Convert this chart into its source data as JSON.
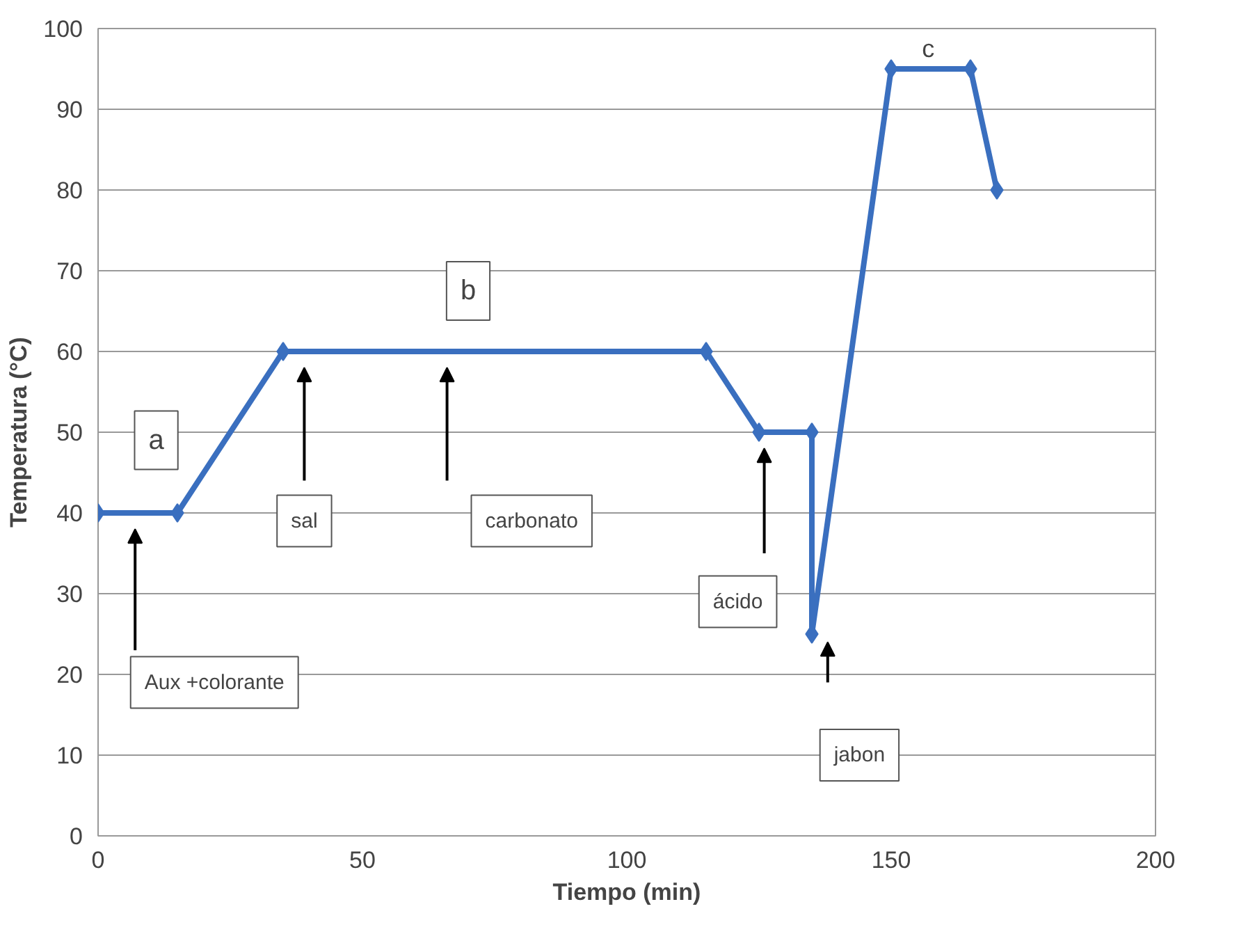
{
  "chart_data": {
    "type": "line",
    "xlabel": "Tiempo (min)",
    "ylabel": "Temperatura (°C)",
    "x": [
      0,
      15,
      35,
      115,
      125,
      135,
      135,
      150,
      165,
      170
    ],
    "series": [
      {
        "color": "#3a6fbf",
        "values": [
          40,
          40,
          60,
          60,
          50,
          50,
          25,
          95,
          95,
          80
        ]
      }
    ],
    "xlim": [
      0,
      200
    ],
    "xticks": [
      0,
      50,
      100,
      150,
      200
    ],
    "ylim": [
      0,
      100
    ],
    "yticks": [
      0,
      10,
      20,
      30,
      40,
      50,
      60,
      70,
      80,
      90,
      100
    ],
    "grid": "y",
    "marker": "diamond",
    "line_style": "solid",
    "annotations": [
      "a",
      "b",
      "c",
      "Aux +colorante",
      "sal",
      "carbonato",
      "ácido",
      "jabon"
    ]
  }
}
